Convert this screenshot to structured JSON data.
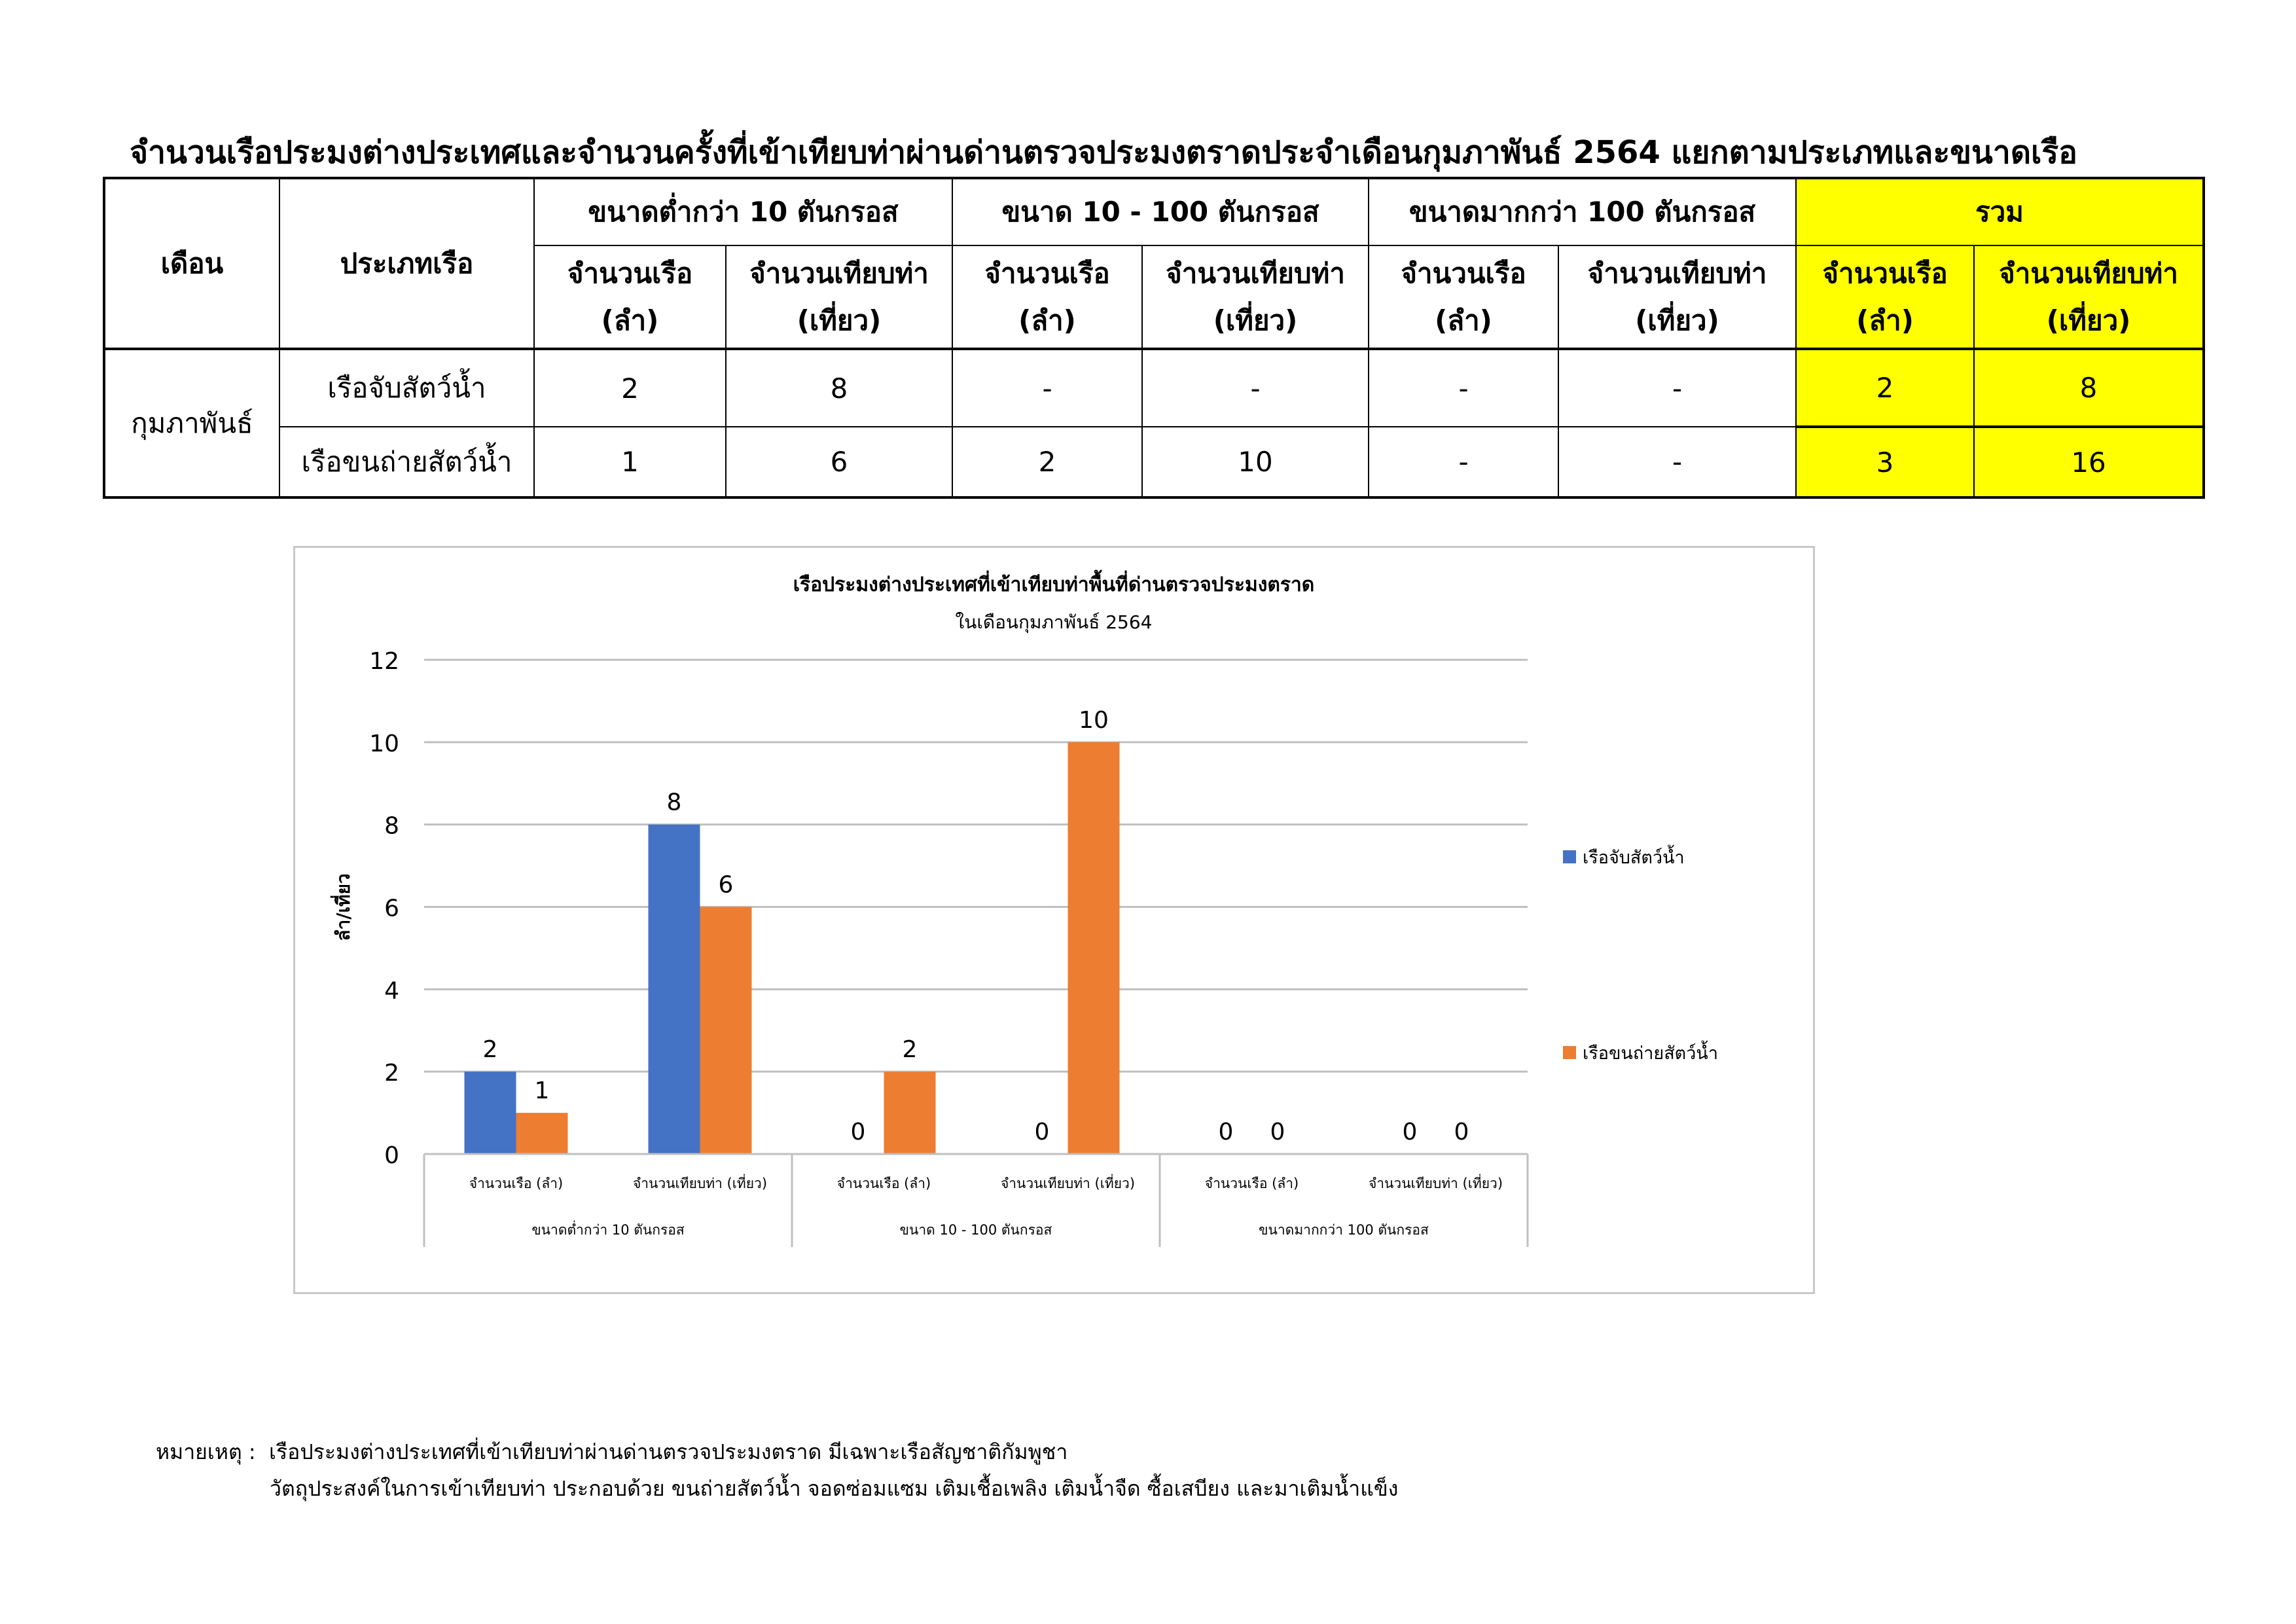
{
  "title": "จำนวนเรือประมงต่างประเทศและจำนวนครั้งที่เข้าเทียบท่าผ่านด่านตรวจประมงตราดประจำเดือนกุมภาพันธ์ 2564 แยกตามประเภทและขนาดเรือ",
  "table": {
    "col_month": "เดือน",
    "col_type": "ประเภทเรือ",
    "groups": [
      "ขนาดต่ำกว่า 10 ตันกรอส",
      "ขนาด 10 - 100 ตันกรอส",
      "ขนาดมากกว่า 100 ตันกรอส",
      "รวม"
    ],
    "sub_boats": "จำนวนเรือ",
    "sub_boats_unit": "(ลำ)",
    "sub_trips": "จำนวนเทียบท่า",
    "sub_trips_unit": "(เที่ยว)",
    "month": "กุมภาพันธ์",
    "rows": [
      {
        "type": "เรือจับสัตว์น้ำ",
        "values": [
          "2",
          "8",
          "-",
          "-",
          "-",
          "-",
          "2",
          "8"
        ]
      },
      {
        "type": "เรือขนถ่ายสัตว์น้ำ",
        "values": [
          "1",
          "6",
          "2",
          "10",
          "-",
          "-",
          "3",
          "16"
        ]
      }
    ],
    "highlight_color": "#ffff00"
  },
  "chart_data": {
    "type": "bar",
    "title": "เรือประมงต่างประเทศที่เข้าเทียบท่าพื้นที่ด่านตรวจประมงตราด",
    "subtitle": "ในเดือนกุมภาพันธ์ 2564",
    "ylabel": "ลำ/เที่ยว",
    "ylim": [
      0,
      12
    ],
    "yticks": [
      "0",
      "2",
      "4",
      "6",
      "8",
      "10",
      "12"
    ],
    "grid": true,
    "legend_position": "right",
    "categories": [
      "จำนวนเรือ (ลำ)",
      "จำนวนเทียบท่า (เที่ยว)",
      "จำนวนเรือ (ลำ)",
      "จำนวนเทียบท่า (เที่ยว)",
      "จำนวนเรือ (ลำ)",
      "จำนวนเทียบท่า (เที่ยว)"
    ],
    "category_groups": [
      "ขนาดต่ำกว่า 10 ตันกรอส",
      "ขนาด 10 - 100 ตันกรอส",
      "ขนาดมากกว่า 100 ตันกรอส"
    ],
    "series": [
      {
        "name": "เรือจับสัตว์น้ำ",
        "color": "#4472c4",
        "values": [
          2,
          8,
          0,
          0,
          0,
          0
        ]
      },
      {
        "name": "เรือขนถ่ายสัตว์น้ำ",
        "color": "#ed7d31",
        "values": [
          1,
          6,
          2,
          10,
          0,
          0
        ]
      }
    ]
  },
  "note": {
    "label": "หมายเหตุ :",
    "line1": "เรือประมงต่างประเทศที่เข้าเทียบท่าผ่านด่านตรวจประมงตราด มีเฉพาะเรือสัญชาติกัมพูชา",
    "line2": "วัตถุประสงค์ในการเข้าเทียบท่า ประกอบด้วย ขนถ่ายสัตว์น้ำ  จอดซ่อมแซม  เติมเชื้อเพลิง  เติมน้ำจืด  ซื้อเสบียง และมาเติมน้ำแข็ง"
  }
}
